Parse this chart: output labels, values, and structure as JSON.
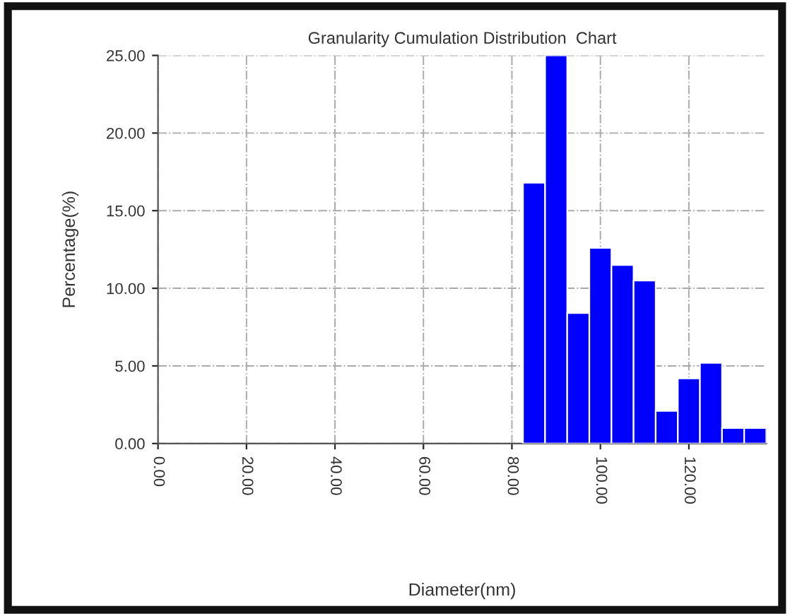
{
  "chart_data": {
    "type": "histogram",
    "title": "Granularity Cumulation Distribution  Chart",
    "xlabel": "Diameter(nm)",
    "ylabel": "Percentage(%)",
    "bins": [
      82.5,
      87.5,
      92.5,
      97.5,
      102.5,
      107.5,
      112.5,
      117.5,
      122.5,
      127.5,
      132.5,
      137.5
    ],
    "values": [
      16.8,
      25.0,
      8.4,
      12.6,
      11.5,
      10.5,
      2.1,
      4.2,
      5.2,
      1.0,
      1.0
    ],
    "color": "#0000ff",
    "xlim": [
      0,
      137.5
    ],
    "xticks": [
      {
        "value": 0,
        "label": "0.00"
      },
      {
        "value": 20,
        "label": "20.00"
      },
      {
        "value": 40,
        "label": "40.00"
      },
      {
        "value": 60,
        "label": "60.00"
      },
      {
        "value": 80,
        "label": "80.00"
      },
      {
        "value": 100,
        "label": "100.00"
      },
      {
        "value": 120,
        "label": "120.00"
      }
    ],
    "ylim": [
      0,
      25
    ],
    "yticks": [
      {
        "value": 0,
        "label": "0.00"
      },
      {
        "value": 5,
        "label": "5.00"
      },
      {
        "value": 10,
        "label": "10.00"
      },
      {
        "value": 15,
        "label": "15.00"
      },
      {
        "value": 20,
        "label": "20.00"
      },
      {
        "value": 25,
        "label": "25.00"
      }
    ],
    "grid": true
  }
}
